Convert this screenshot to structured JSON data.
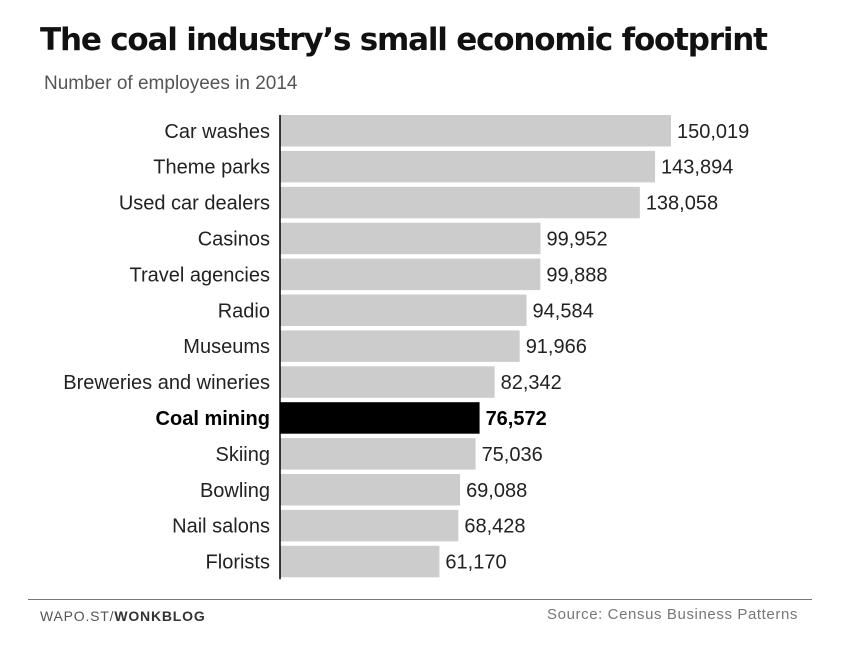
{
  "chart_data": {
    "type": "bar",
    "orientation": "horizontal",
    "title": "The coal industry’s small economic footprint",
    "subtitle": "Number of employees in 2014",
    "categories": [
      "Car washes",
      "Theme parks",
      "Used car dealers",
      "Casinos",
      "Travel agencies",
      "Radio",
      "Museums",
      "Breweries and wineries",
      "Coal mining",
      "Skiing",
      "Bowling",
      "Nail salons",
      "Florists"
    ],
    "values": [
      150019,
      143894,
      138058,
      99952,
      99888,
      94584,
      91966,
      82342,
      76572,
      75036,
      69088,
      68428,
      61170
    ],
    "value_labels": [
      "150,019",
      "143,894",
      "138,058",
      "99,952",
      "99,888",
      "94,584",
      "91,966",
      "82,342",
      "76,572",
      "75,036",
      "69,088",
      "68,428",
      "61,170"
    ],
    "highlight": "Coal mining",
    "xlim": [
      0,
      150019
    ],
    "grid": false,
    "colors": {
      "bar": "#cccccc",
      "highlight": "#000000",
      "axis": "#000000"
    }
  },
  "footer": {
    "credit_prefix": "WAPO.ST/",
    "credit_bold": "WONKBLOG",
    "source": "Source: Census Business Patterns"
  }
}
